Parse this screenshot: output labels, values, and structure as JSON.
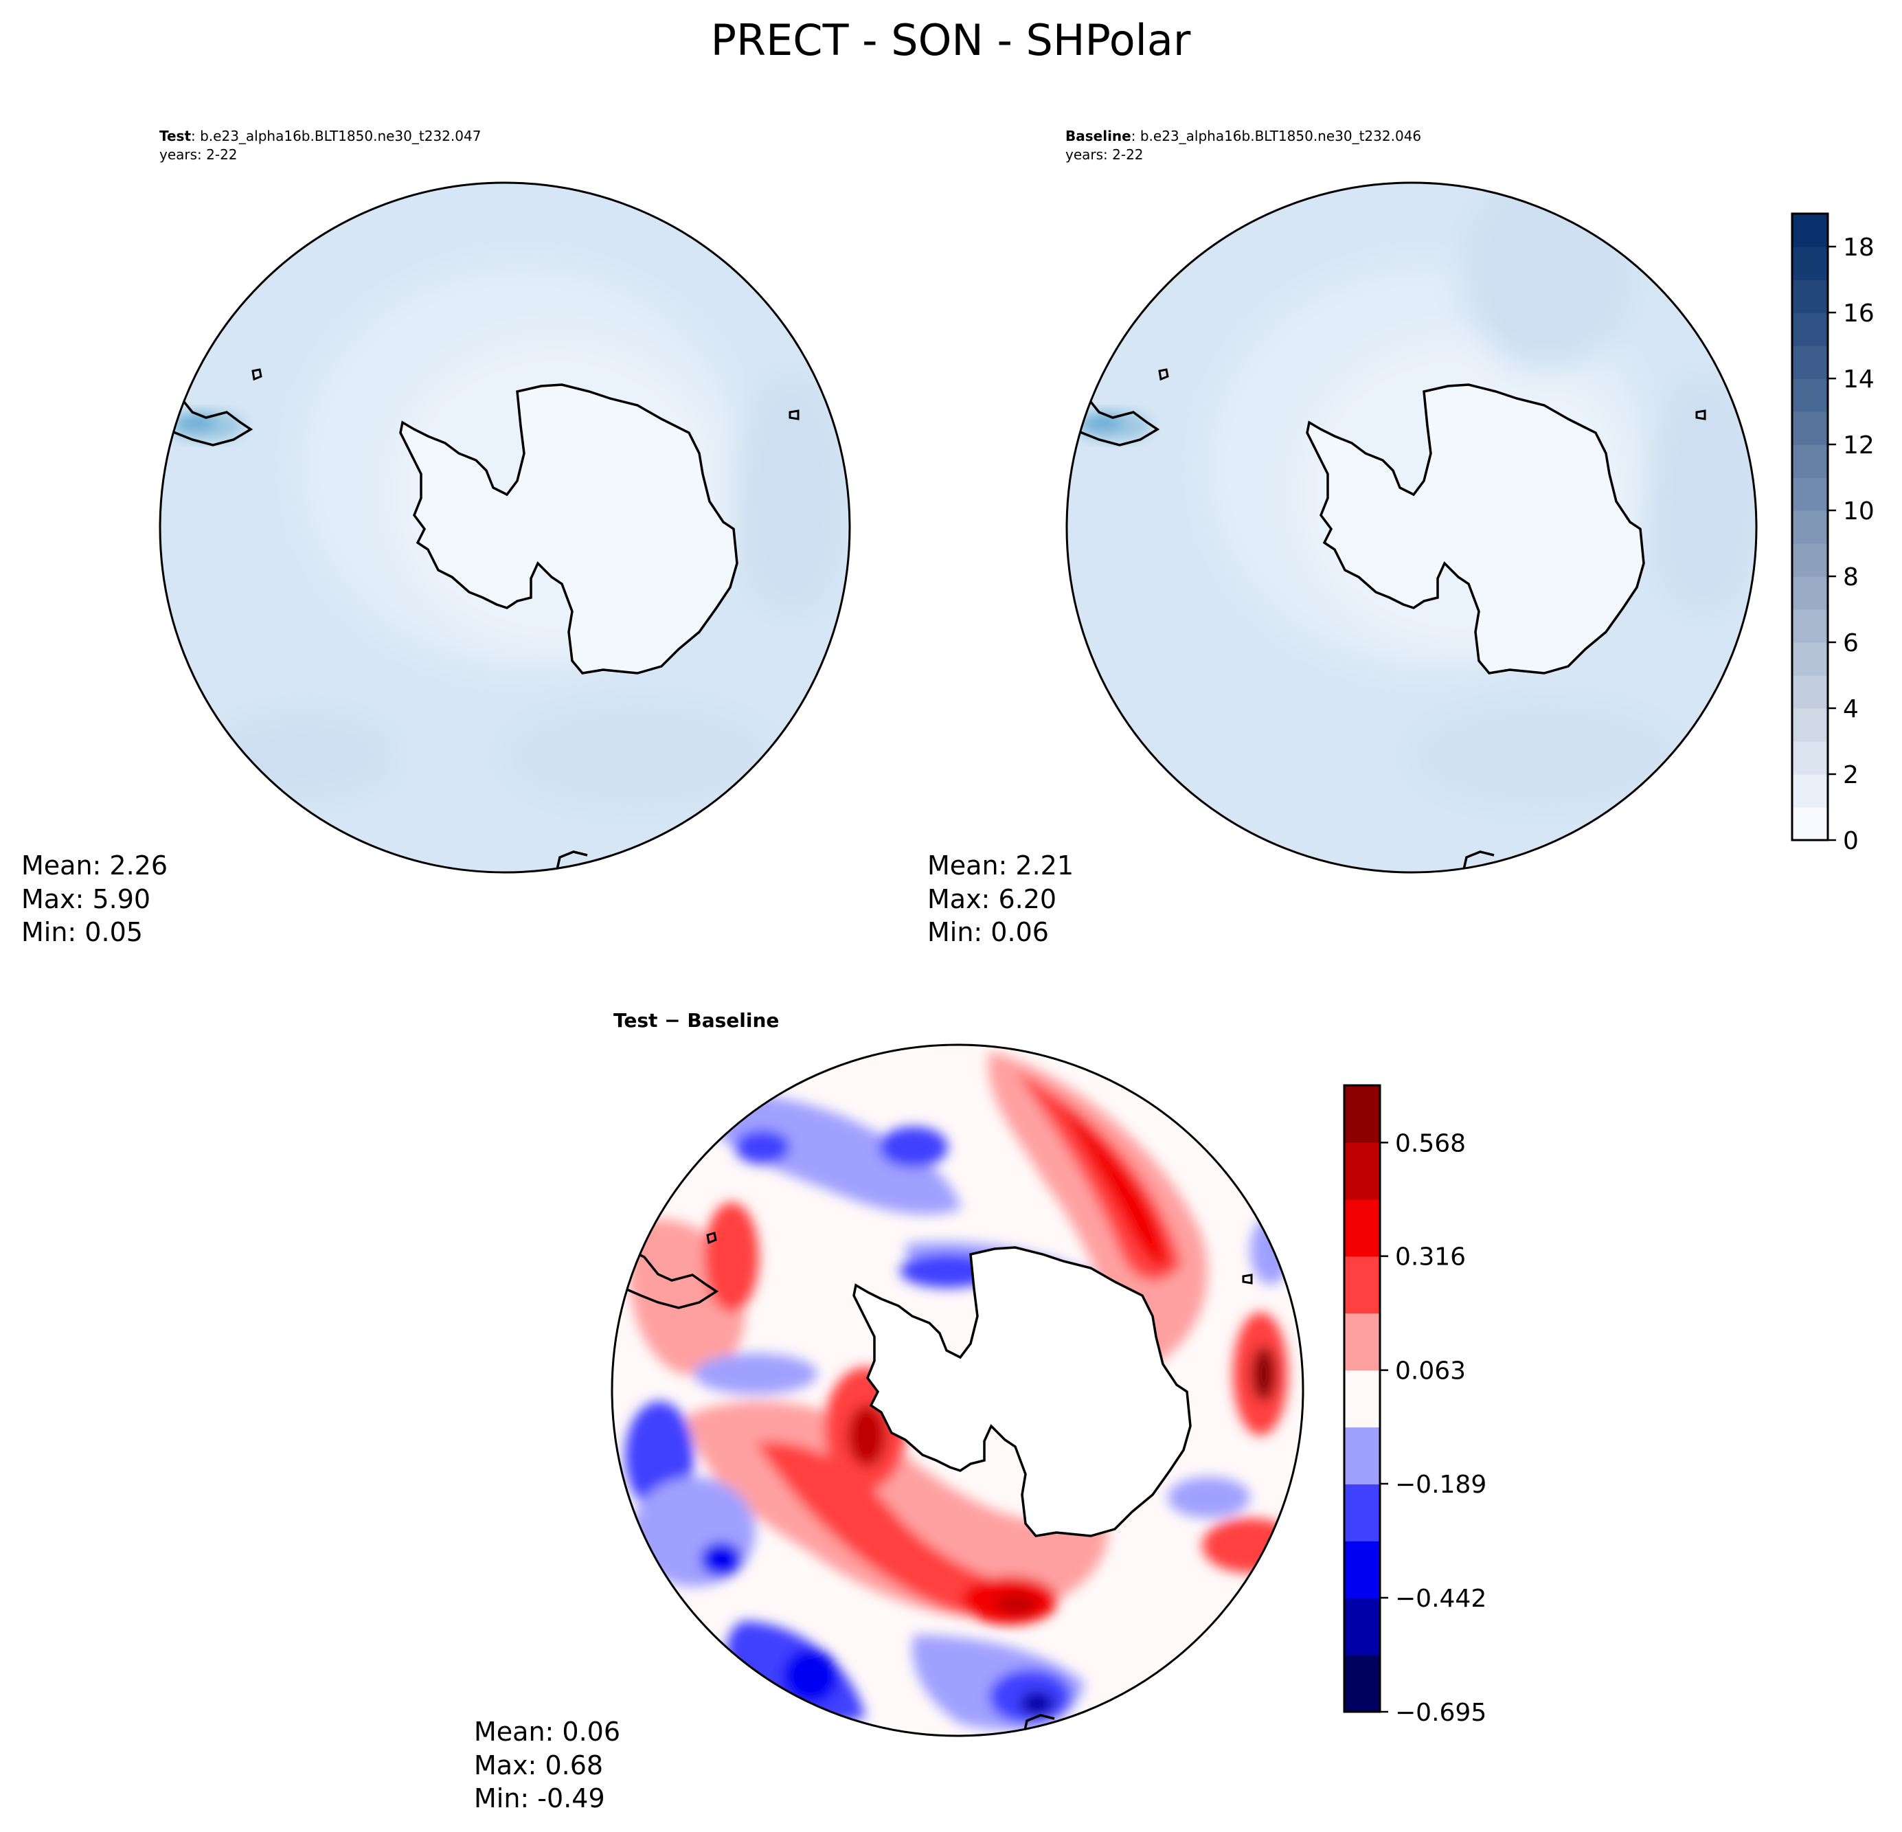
{
  "figure": {
    "title": "PRECT - SON - SHPolar"
  },
  "panels": {
    "test": {
      "label_bold": "Test",
      "label_rest": ": b.e23_alpha16b.BLT1850.ne30_t232.047",
      "years": "years: 2-22",
      "stats": [
        "Mean:  2.26",
        "Max:  5.90",
        "Min:  0.05"
      ]
    },
    "baseline": {
      "label_bold": "Baseline",
      "label_rest": ": b.e23_alpha16b.BLT1850.ne30_t232.046",
      "years": "years: 2-22",
      "stats": [
        "Mean:  2.21",
        "Max:  6.20",
        "Min:  0.06"
      ]
    },
    "diff": {
      "label": "Test − Baseline",
      "stats": [
        "Mean:  0.06",
        "Max:  0.68",
        "Min: -0.49"
      ]
    }
  },
  "chart_data": [
    {
      "type": "heatmap",
      "name": "test",
      "projection": "south-polar-stereographic",
      "title": "Test : b.e23_alpha16b.BLT1850.ne30_t232.047",
      "subtitle": "years: 2-22",
      "mean": 2.26,
      "max": 5.9,
      "min": 0.05
    },
    {
      "type": "heatmap",
      "name": "baseline",
      "projection": "south-polar-stereographic",
      "title": "Baseline : b.e23_alpha16b.BLT1850.ne30_t232.046",
      "subtitle": "years: 2-22",
      "mean": 2.21,
      "max": 6.2,
      "min": 0.06
    },
    {
      "type": "heatmap",
      "name": "difference",
      "projection": "south-polar-stereographic",
      "title": "Test − Baseline",
      "mean": 0.06,
      "max": 0.68,
      "min": -0.49
    }
  ],
  "colorbars": {
    "abs": {
      "range": [
        0,
        19
      ],
      "levels": 19,
      "ticks": [
        0,
        2,
        4,
        6,
        8,
        10,
        12,
        14,
        16,
        18
      ],
      "tick_labels": [
        "0",
        "2",
        "4",
        "6",
        "8",
        "10",
        "12",
        "14",
        "16",
        "18"
      ],
      "low_color": "#f7fbff",
      "high_color": "#08306b"
    },
    "diff": {
      "range": [
        -0.695,
        0.695
      ],
      "levels": 11,
      "ticks": [
        -0.695,
        -0.442,
        -0.189,
        0.063,
        0.316,
        0.568
      ],
      "tick_labels": [
        "−0.695",
        "−0.442",
        "−0.189",
        "0.063",
        "0.316",
        "0.568"
      ],
      "colors": [
        "#000060",
        "#0000a8",
        "#0000f2",
        "#4040ff",
        "#a0a0ff",
        "#fff9f9",
        "#ffa0a0",
        "#ff4040",
        "#f20000",
        "#c00000",
        "#8c0000"
      ]
    }
  }
}
